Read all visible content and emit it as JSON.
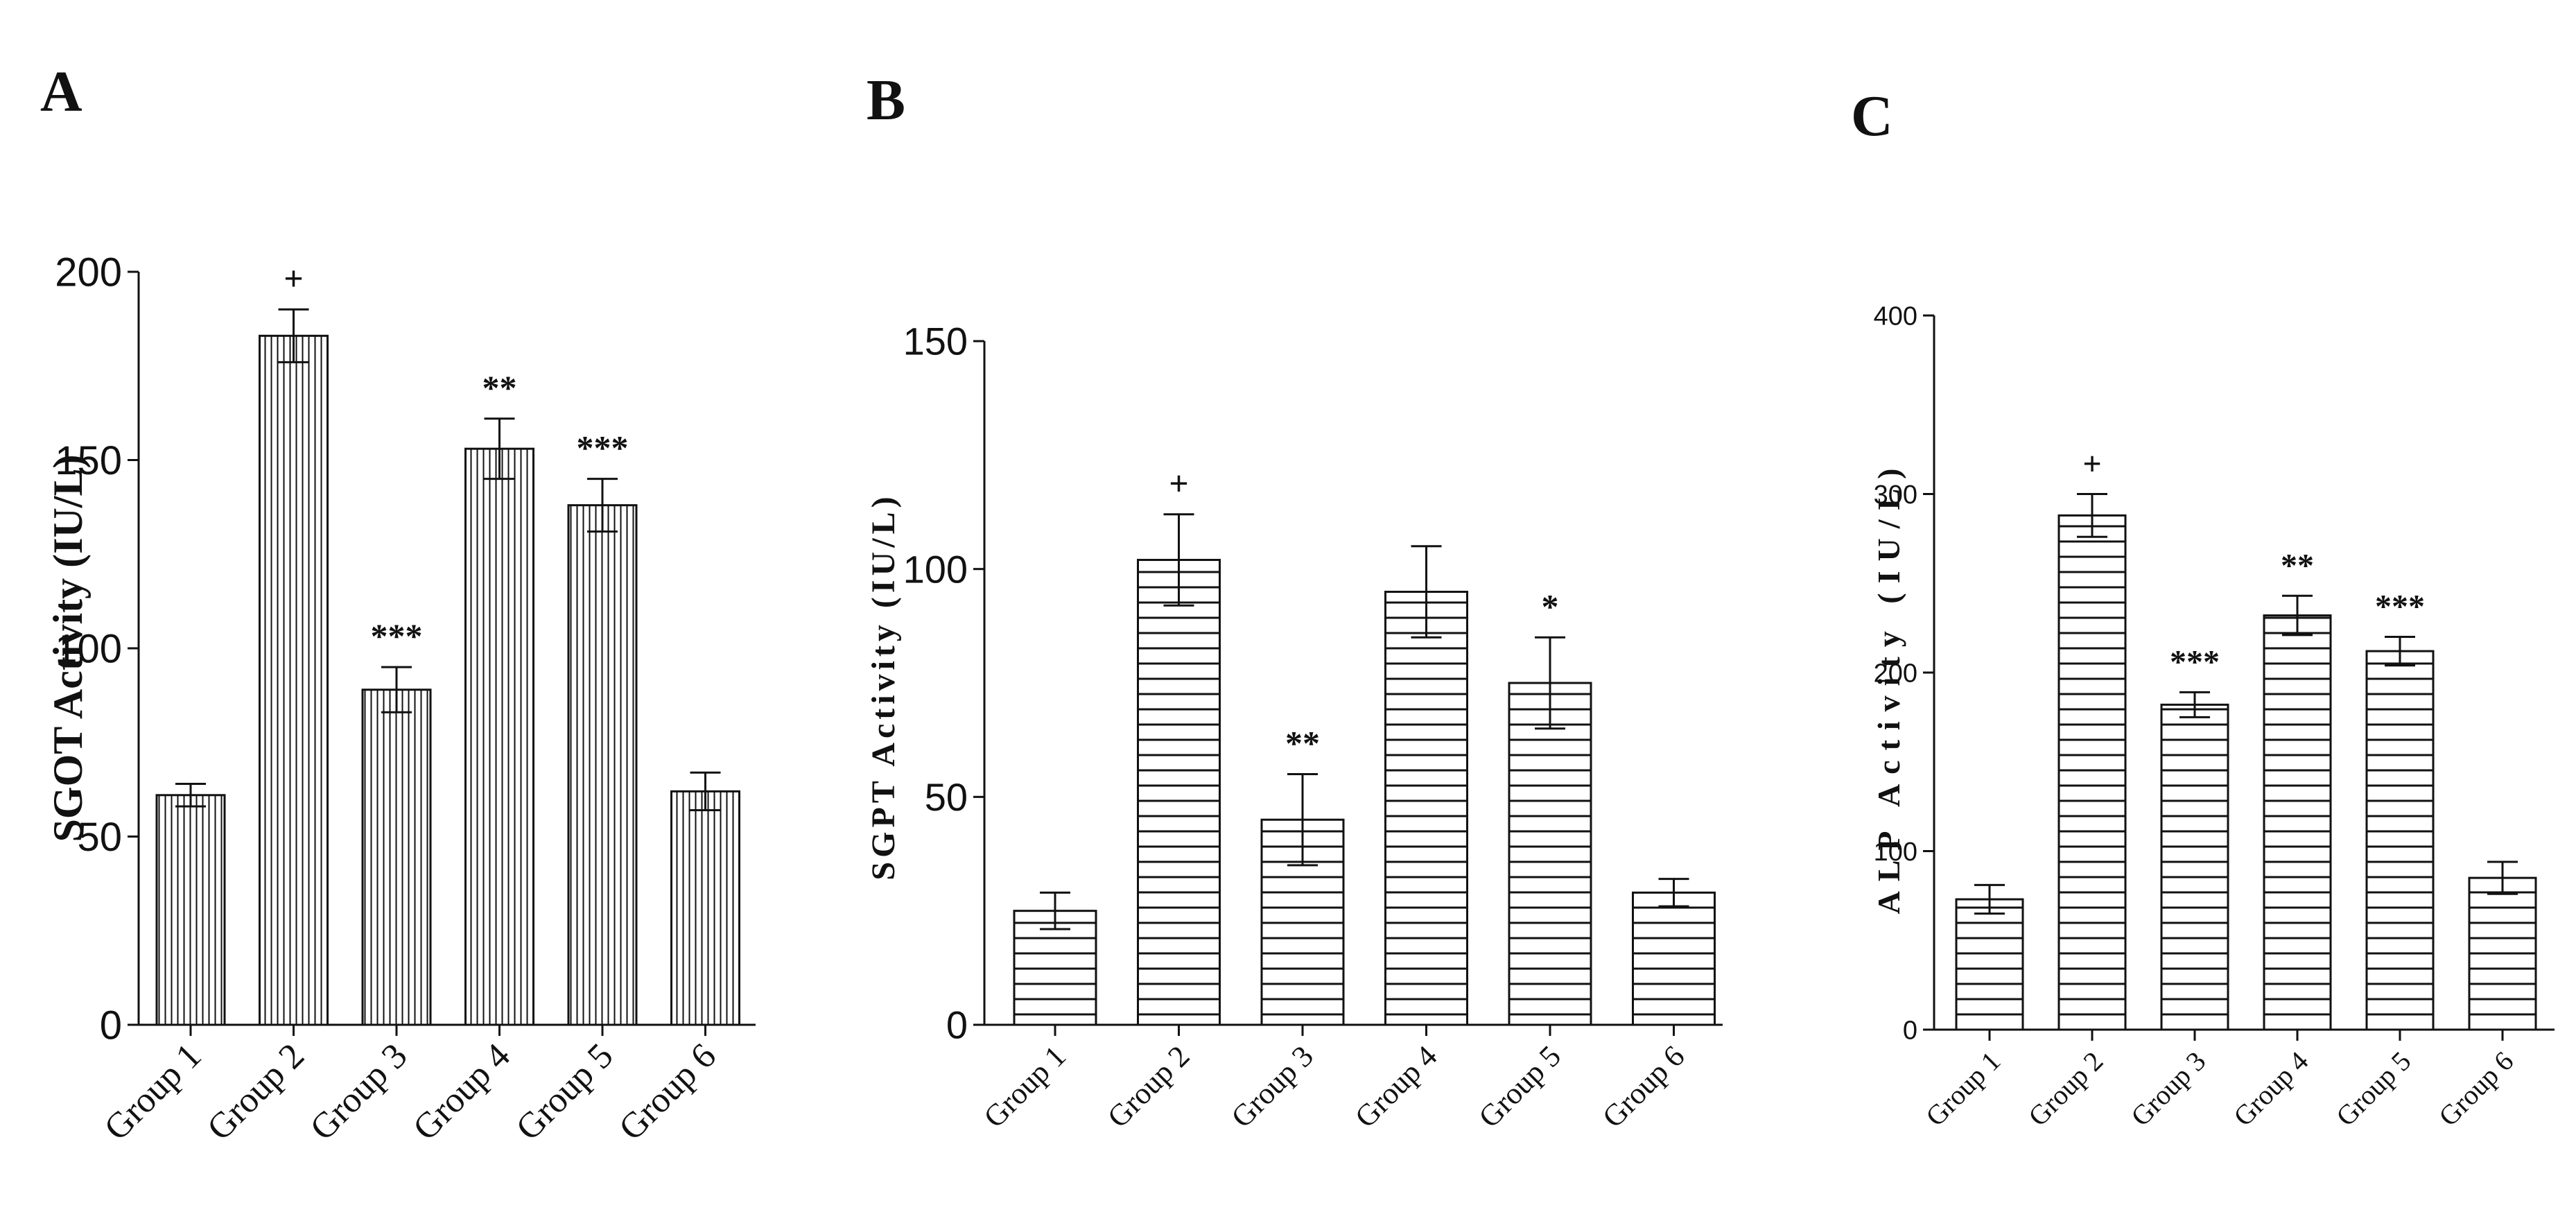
{
  "chart_data": [
    {
      "panel": "A",
      "type": "bar",
      "pattern": "vertical",
      "categories": [
        "Group 1",
        "Group 2",
        "Group 3",
        "Group 4",
        "Group 5",
        "Group 6"
      ],
      "values": [
        61,
        183,
        89,
        153,
        138,
        62
      ],
      "errors": [
        3,
        7,
        6,
        8,
        7,
        5
      ],
      "significance": [
        "",
        "+",
        "***",
        "**",
        "***",
        ""
      ],
      "ylabel": "SGOT Activity (IU/L)",
      "ylim": [
        0,
        200
      ],
      "yticks": [
        0,
        50,
        100,
        150,
        200
      ],
      "ytick_labels": [
        "0",
        "50",
        "100",
        "150",
        "200"
      ]
    },
    {
      "panel": "B",
      "type": "bar",
      "pattern": "horizontal",
      "categories": [
        "Group 1",
        "Group 2",
        "Group 3",
        "Group 4",
        "Group 5",
        "Group 6"
      ],
      "values": [
        25,
        102,
        45,
        95,
        75,
        29
      ],
      "errors": [
        4,
        10,
        10,
        10,
        10,
        3
      ],
      "significance": [
        "",
        "+",
        "**",
        "",
        "*",
        ""
      ],
      "ylabel": "SGPT Activity (IU/L)",
      "ylim": [
        0,
        150
      ],
      "yticks": [
        0,
        50,
        100,
        150
      ],
      "ytick_labels": [
        "0",
        "50",
        "100",
        "150"
      ]
    },
    {
      "panel": "C",
      "type": "bar",
      "pattern": "horizontal",
      "categories": [
        "Group 1",
        "Group 2",
        "Group 3",
        "Group 4",
        "Group 5",
        "Group 6"
      ],
      "values": [
        73,
        288,
        182,
        232,
        212,
        85
      ],
      "errors": [
        8,
        12,
        7,
        11,
        8,
        9
      ],
      "significance": [
        "",
        "+",
        "***",
        "**",
        "***",
        ""
      ],
      "ylabel": "ALP Activity (IU/L)",
      "ylim": [
        0,
        400
      ],
      "yticks": [
        0,
        100,
        200,
        300,
        400
      ],
      "ytick_labels": [
        "0",
        "100",
        "200",
        "300",
        "400"
      ]
    }
  ]
}
